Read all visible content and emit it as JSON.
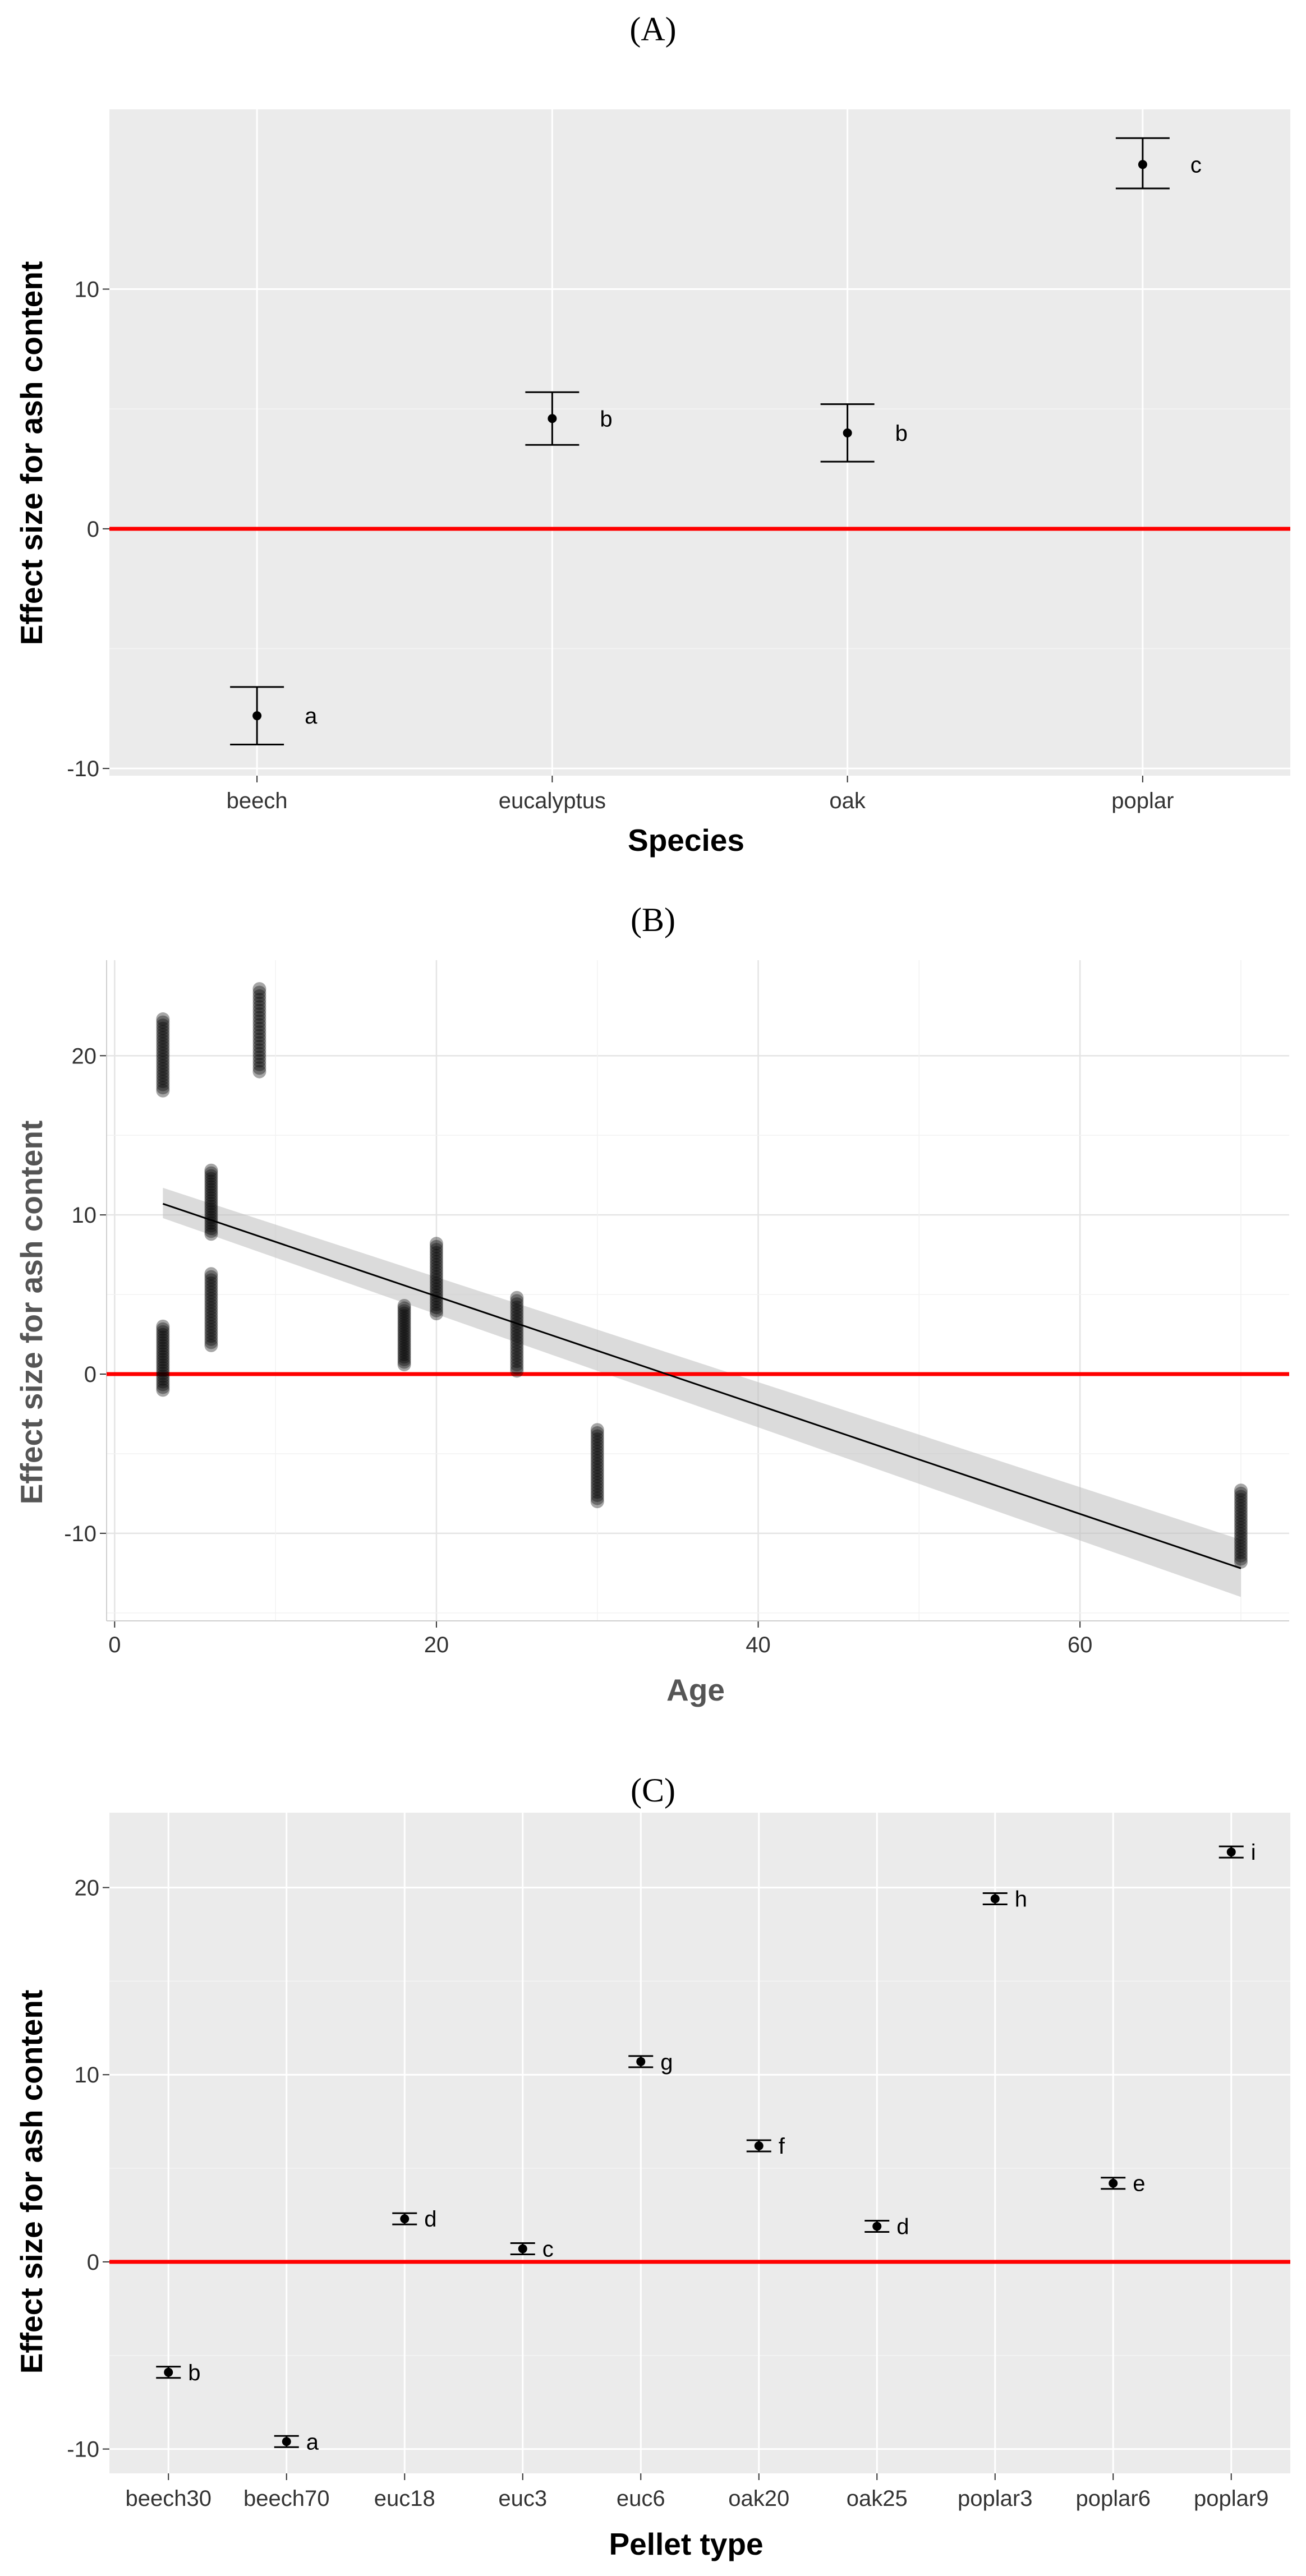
{
  "panel_labels": [
    "(A)",
    "(B)",
    "(C)"
  ],
  "colors": {
    "background": "#ebebeb",
    "grid": "#ffffff",
    "reference_line": "#ff0000",
    "points": "#000000",
    "ribbon": "#bdbdbd"
  },
  "chart_data": [
    {
      "type": "scatter",
      "subtype": "point-errorbar",
      "title": "(A)",
      "xlabel": "Species",
      "ylabel": "Effect size for ash content",
      "categories": [
        "beech",
        "eucalyptus",
        "oak",
        "poplar"
      ],
      "values": [
        -7.8,
        4.6,
        4.0,
        15.2
      ],
      "lower": [
        -9.0,
        3.5,
        2.8,
        14.2
      ],
      "upper": [
        -6.6,
        5.7,
        5.2,
        16.3
      ],
      "letters": [
        "a",
        "b",
        "b",
        "c"
      ],
      "ylim": [
        -10.3,
        17.5
      ],
      "yticks": [
        -10,
        0,
        10
      ],
      "reference_line": 0,
      "grid": true
    },
    {
      "type": "scatter",
      "subtype": "scatter-with-regression",
      "title": "(B)",
      "xlabel": "Age",
      "ylabel": "Effect size for ash content",
      "xlim": [
        -0.5,
        73
      ],
      "ylim": [
        -15.5,
        26
      ],
      "xticks": [
        0,
        20,
        40,
        60
      ],
      "yticks": [
        -10,
        0,
        10,
        20
      ],
      "reference_line": 0,
      "grid": true,
      "groups": [
        {
          "x": 3,
          "y_min": 17.8,
          "y_max": 22.3
        },
        {
          "x": 3,
          "y_min": -1.0,
          "y_max": 3.0
        },
        {
          "x": 6,
          "y_min": 8.8,
          "y_max": 12.8
        },
        {
          "x": 6,
          "y_min": 1.8,
          "y_max": 6.3
        },
        {
          "x": 9,
          "y_min": 19.0,
          "y_max": 24.2
        },
        {
          "x": 18,
          "y_min": 0.6,
          "y_max": 4.3
        },
        {
          "x": 20,
          "y_min": 3.8,
          "y_max": 8.2
        },
        {
          "x": 25,
          "y_min": 0.2,
          "y_max": 4.8
        },
        {
          "x": 30,
          "y_min": -8.0,
          "y_max": -3.5
        },
        {
          "x": 70,
          "y_min": -11.8,
          "y_max": -7.3
        }
      ],
      "regression": {
        "x": [
          3,
          70
        ],
        "y": [
          10.7,
          -12.2
        ],
        "ci_lower": [
          9.8,
          -14.0
        ],
        "ci_upper": [
          11.7,
          -10.4
        ]
      }
    },
    {
      "type": "scatter",
      "subtype": "point-errorbar",
      "title": "(C)",
      "xlabel": "Pellet type",
      "ylabel": "Effect size for ash content",
      "categories": [
        "beech30",
        "beech70",
        "euc18",
        "euc3",
        "euc6",
        "oak20",
        "oak25",
        "poplar3",
        "poplar6",
        "poplar9"
      ],
      "values": [
        -5.9,
        -9.6,
        2.3,
        0.7,
        10.7,
        6.2,
        1.9,
        19.4,
        4.2,
        21.9
      ],
      "lower": [
        -6.2,
        -9.9,
        2.0,
        0.4,
        10.4,
        5.9,
        1.6,
        19.1,
        3.9,
        21.6
      ],
      "upper": [
        -5.6,
        -9.3,
        2.6,
        1.0,
        11.0,
        6.5,
        2.2,
        19.7,
        4.5,
        22.2
      ],
      "letters": [
        "b",
        "a",
        "d",
        "c",
        "g",
        "f",
        "d",
        "h",
        "e",
        "i"
      ],
      "ylim": [
        -11.3,
        24.0
      ],
      "yticks": [
        -10,
        0,
        10,
        20
      ],
      "reference_line": 0,
      "grid": true
    }
  ]
}
